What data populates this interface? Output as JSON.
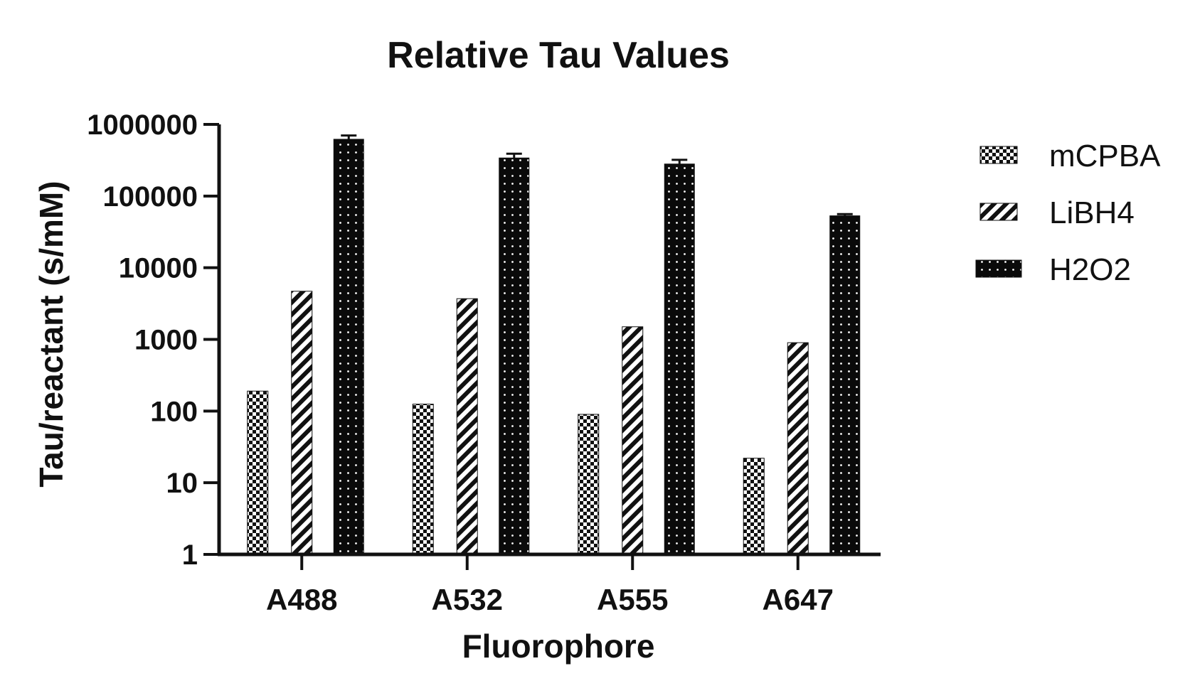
{
  "chart_data": {
    "type": "bar",
    "title": "Relative Tau Values",
    "xlabel": "Fluorophore",
    "ylabel": "Tau/reactant (s/mM)",
    "yscale": "log",
    "ylim": [
      1,
      1000000
    ],
    "yticks": [
      1,
      10,
      100,
      1000,
      10000,
      100000,
      1000000
    ],
    "ytick_labels": [
      "1",
      "10",
      "100",
      "1000",
      "10000",
      "100000",
      "1000000"
    ],
    "categories": [
      "A488",
      "A532",
      "A555",
      "A647"
    ],
    "series": [
      {
        "name": "mCPBA",
        "values": [
          190,
          125,
          90,
          22
        ],
        "errors": [
          0,
          0,
          0,
          0
        ],
        "pattern": "checker"
      },
      {
        "name": "LiBH4",
        "values": [
          4700,
          3700,
          1500,
          900
        ],
        "errors": [
          0,
          0,
          0,
          0
        ],
        "pattern": "hatch"
      },
      {
        "name": "H2O2",
        "values": [
          620000,
          340000,
          280000,
          53000
        ],
        "errors": [
          80000,
          50000,
          40000,
          3000
        ],
        "pattern": "dots"
      }
    ],
    "legend": "right",
    "grid": false
  }
}
